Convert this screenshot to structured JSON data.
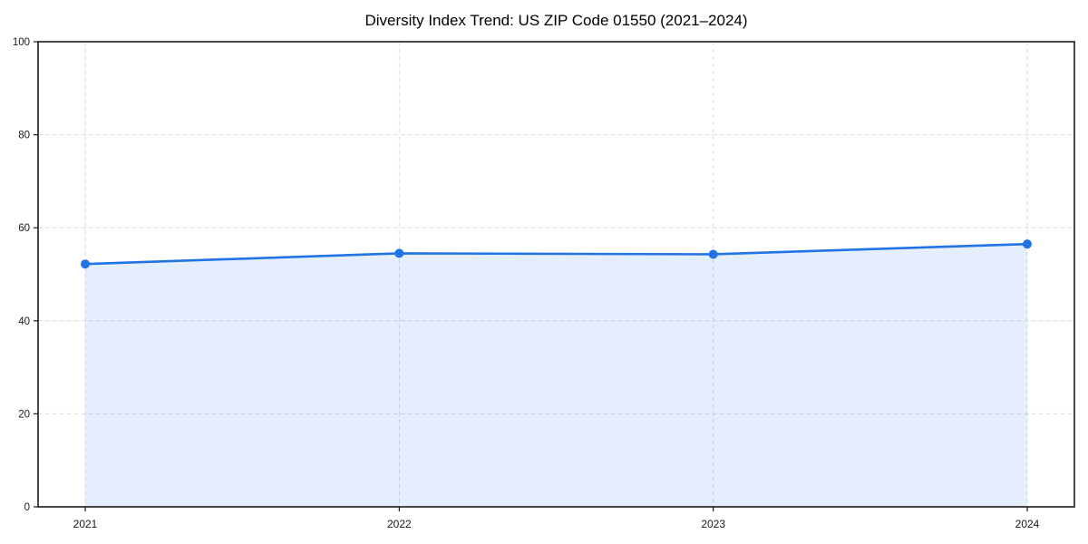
{
  "chart_data": {
    "type": "line",
    "title": "Diversity Index Trend: US ZIP Code 01550 (2021–2024)",
    "xlabel": "",
    "ylabel": "",
    "categories": [
      "2021",
      "2022",
      "2023",
      "2024"
    ],
    "series": [
      {
        "name": "Diversity Index",
        "values": [
          52.2,
          54.5,
          54.3,
          56.5
        ]
      }
    ],
    "ylim": [
      0,
      100
    ],
    "y_ticks": [
      0,
      20,
      40,
      60,
      80,
      100
    ],
    "grid": "on",
    "grid_style": "dashed",
    "legend": "none",
    "line_color": "#2273e6",
    "marker_color": "#2273e6",
    "fill_color": "#2273e6",
    "fill_opacity": 0.12,
    "grid_color": "#dedede",
    "spine_color": "#1a1a1a",
    "tick_label_color": "#1a1a1a",
    "background_color": "#ffffff"
  }
}
